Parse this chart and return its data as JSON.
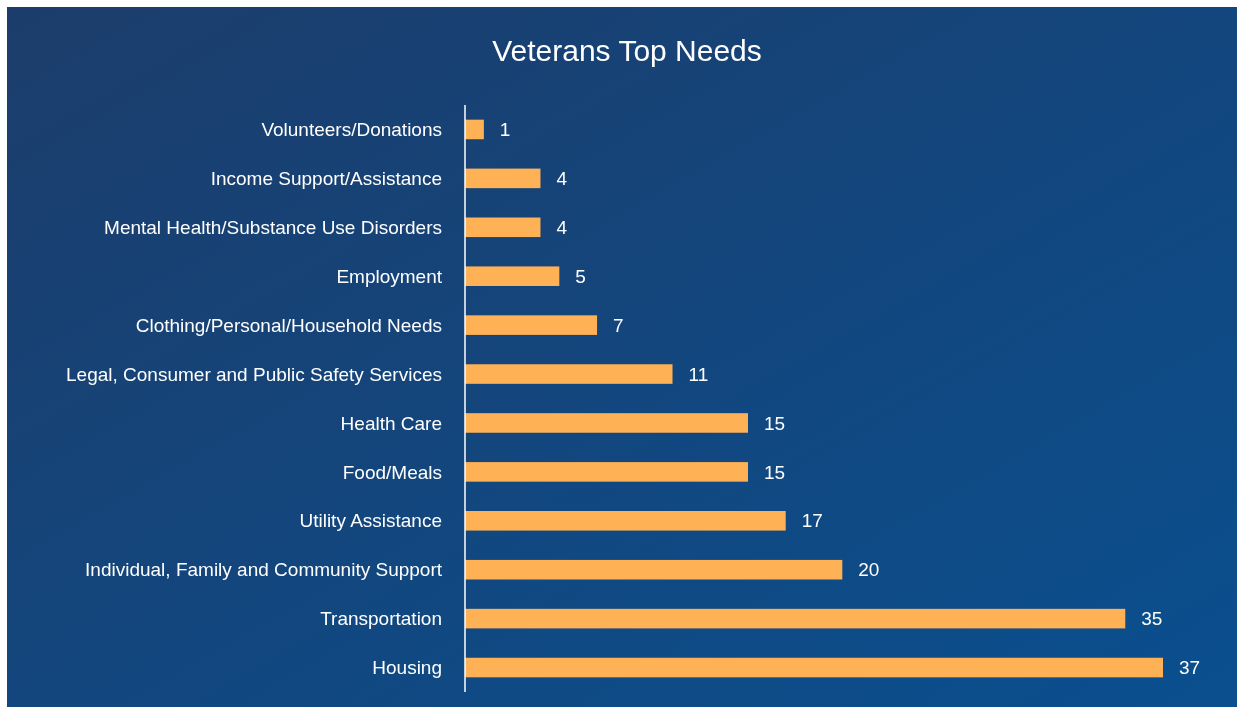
{
  "chart_data": {
    "type": "bar",
    "orientation": "horizontal",
    "title": "Veterans Top Needs",
    "categories": [
      "Volunteers/Donations",
      "Income Support/Assistance",
      "Mental Health/Substance Use Disorders",
      "Employment",
      "Clothing/Personal/Household Needs",
      "Legal, Consumer and Public Safety Services",
      "Health Care",
      "Food/Meals",
      "Utility Assistance",
      "Individual, Family and Community Support",
      "Transportation",
      "Housing"
    ],
    "values": [
      1,
      4,
      4,
      5,
      7,
      11,
      15,
      15,
      17,
      20,
      35,
      37
    ],
    "color": "#ffb155",
    "data_labels": true
  }
}
